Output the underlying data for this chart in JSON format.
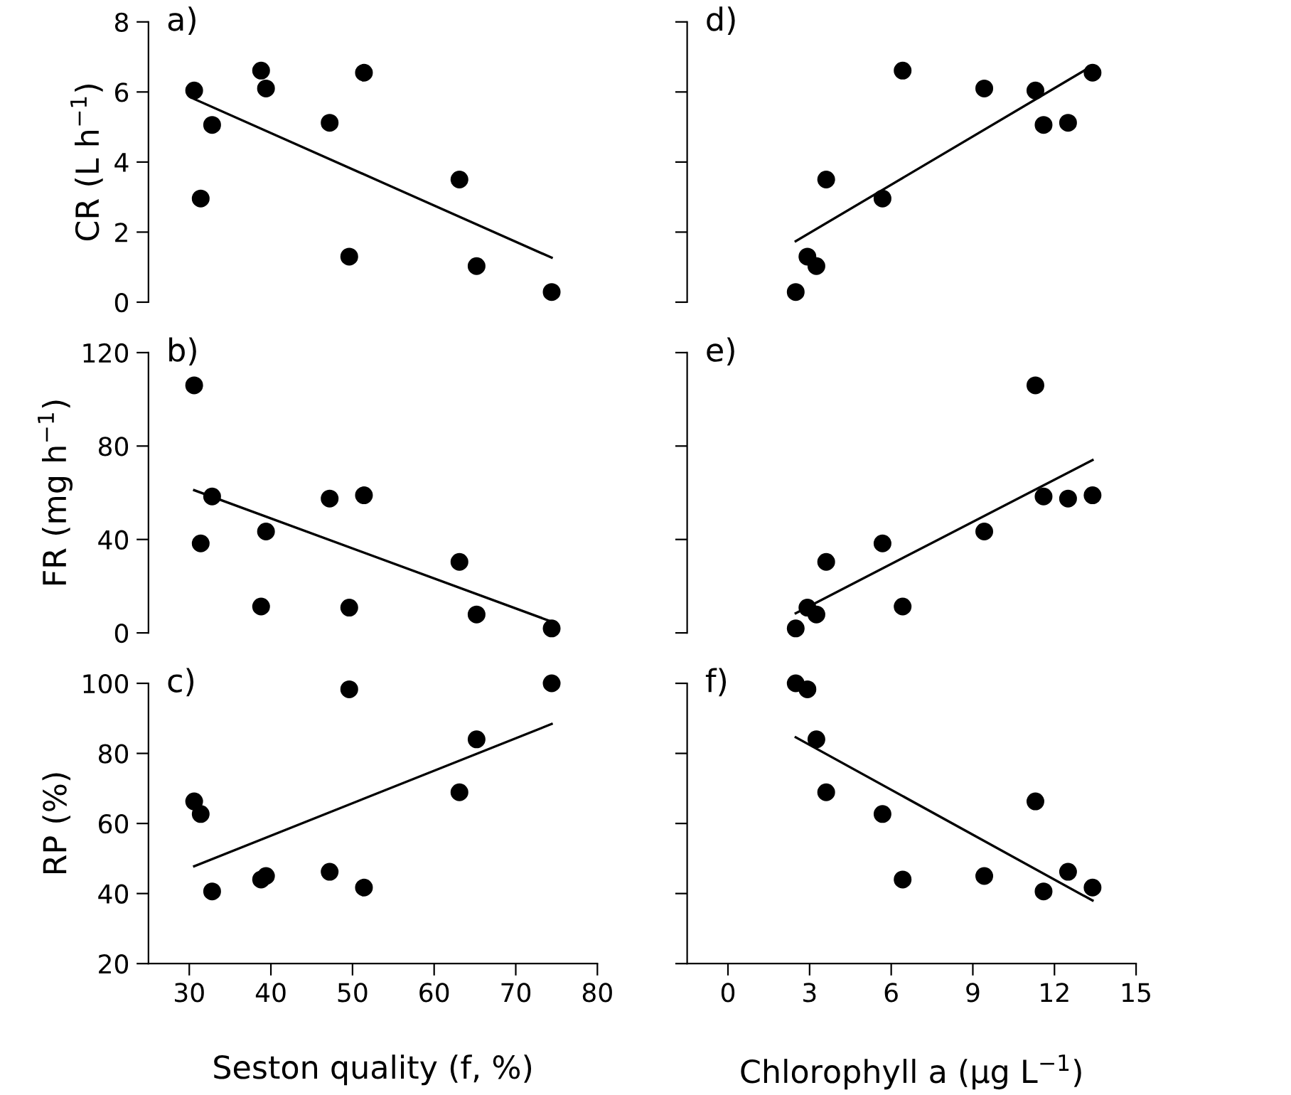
{
  "chart_data": [
    {
      "type": "scatter",
      "annotations": [
        "a)"
      ],
      "ylabel": "CR (L h$^{−1}$)",
      "xlim": [
        25,
        80
      ],
      "ylim": [
        0,
        8
      ],
      "yticks": [
        0,
        2,
        4,
        6,
        8
      ],
      "tick_labels": "y",
      "grid": false,
      "series": [
        {
          "marker": "circle",
          "color": "#000000",
          "x": [
            30.6,
            31.4,
            32.8,
            38.8,
            39.4,
            47.2,
            49.6,
            51.4,
            63.1,
            65.2,
            74.4
          ],
          "values": [
            6.04,
            2.96,
            5.06,
            6.61,
            6.1,
            5.12,
            1.3,
            6.55,
            3.5,
            1.03,
            0.29
          ]
        },
        {
          "type": "line",
          "color": "#000000",
          "x": [
            30.6,
            74.4
          ],
          "values": [
            5.8,
            1.27
          ]
        }
      ]
    },
    {
      "type": "scatter",
      "annotations": [
        "d)"
      ],
      "xlim": [
        -1.5,
        15
      ],
      "ylim": [
        0,
        8
      ],
      "yticks": [
        {
          "value": 0,
          "label": null
        },
        {
          "value": 2,
          "label": null
        },
        {
          "value": 4,
          "label": null
        },
        {
          "value": 6,
          "label": null
        },
        {
          "value": 8,
          "label": null
        }
      ],
      "tick_labels": false,
      "grid": false,
      "series": [
        {
          "marker": "circle",
          "color": "#000000",
          "x": [
            11.3,
            5.68,
            11.6,
            6.42,
            9.42,
            12.5,
            2.92,
            13.4,
            3.61,
            3.25,
            2.49
          ],
          "values": [
            6.04,
            2.96,
            5.06,
            6.61,
            6.1,
            5.12,
            1.3,
            6.55,
            3.5,
            1.03,
            0.29
          ]
        },
        {
          "type": "line",
          "color": "#000000",
          "x": [
            2.49,
            13.4
          ],
          "values": [
            1.74,
            6.75
          ]
        }
      ]
    },
    {
      "type": "scatter",
      "annotations": [
        "b)"
      ],
      "ylabel": "FR (mg h$^{−1}$)",
      "xlim": [
        25,
        80
      ],
      "ylim": [
        0,
        120
      ],
      "yticks": [
        0,
        40,
        80,
        120
      ],
      "tick_labels": "y",
      "grid": false,
      "series": [
        {
          "marker": "circle",
          "color": "#000000",
          "x": [
            30.6,
            31.4,
            32.8,
            38.8,
            39.4,
            47.2,
            49.6,
            51.4,
            63.1,
            65.2,
            74.4
          ],
          "values": [
            106,
            38.3,
            58.4,
            11.3,
            43.4,
            57.5,
            10.8,
            58.9,
            30.4,
            7.9,
            1.9
          ]
        },
        {
          "type": "line",
          "color": "#000000",
          "x": [
            30.6,
            74.4
          ],
          "values": [
            61.1,
            4.8
          ]
        }
      ]
    },
    {
      "type": "scatter",
      "annotations": [
        "e)"
      ],
      "xlim": [
        -1.5,
        15
      ],
      "ylim": [
        0,
        120
      ],
      "yticks": [
        {
          "value": 0,
          "label": null
        },
        {
          "value": 40,
          "label": null
        },
        {
          "value": 80,
          "label": null
        },
        {
          "value": 120,
          "label": null
        }
      ],
      "tick_labels": false,
      "grid": false,
      "series": [
        {
          "marker": "circle",
          "color": "#000000",
          "x": [
            11.3,
            5.68,
            11.6,
            6.42,
            9.42,
            12.5,
            2.92,
            13.4,
            3.61,
            3.25,
            2.49
          ],
          "values": [
            106,
            38.3,
            58.4,
            11.3,
            43.4,
            57.5,
            10.8,
            58.9,
            30.4,
            7.9,
            1.9
          ]
        },
        {
          "type": "line",
          "color": "#000000",
          "x": [
            2.49,
            13.4
          ],
          "values": [
            8.4,
            74
          ]
        }
      ]
    },
    {
      "type": "scatter",
      "annotations": [
        "c)"
      ],
      "ylabel": "RP (%)",
      "xlabel": "Seston quality (f, %)",
      "xlim": [
        25,
        80
      ],
      "ylim": [
        20,
        100
      ],
      "xticks": [
        30,
        40,
        50,
        60,
        70,
        80
      ],
      "yticks": [
        20,
        40,
        60,
        80,
        100
      ],
      "grid": false,
      "series": [
        {
          "marker": "circle",
          "color": "#000000",
          "x": [
            30.6,
            31.4,
            32.8,
            38.8,
            39.4,
            47.2,
            49.6,
            51.4,
            63.1,
            65.2,
            74.4
          ],
          "values": [
            66.3,
            62.7,
            40.6,
            44,
            45,
            46.2,
            98.3,
            41.7,
            68.9,
            84,
            100
          ]
        },
        {
          "type": "line",
          "color": "#000000",
          "x": [
            30.6,
            74.4
          ],
          "values": [
            47.8,
            88.4
          ]
        }
      ]
    },
    {
      "type": "scatter",
      "annotations": [
        "f)"
      ],
      "xlabel": "Chlorophyll a (µg L$^{−1}$)",
      "xlim": [
        -1.5,
        15
      ],
      "ylim": [
        20,
        100
      ],
      "xticks": [
        0,
        3,
        6,
        9,
        12,
        15
      ],
      "yticks": [
        {
          "value": 20,
          "label": null
        },
        {
          "value": 40,
          "label": null
        },
        {
          "value": 60,
          "label": null
        },
        {
          "value": 80,
          "label": null
        },
        {
          "value": 100,
          "label": null
        }
      ],
      "tick_labels": "x",
      "grid": false,
      "series": [
        {
          "marker": "circle",
          "color": "#000000",
          "x": [
            11.3,
            5.68,
            11.6,
            6.42,
            9.42,
            12.5,
            2.92,
            13.4,
            3.61,
            3.25,
            2.49
          ],
          "values": [
            66.3,
            62.7,
            40.6,
            44,
            45,
            46.2,
            98.3,
            41.7,
            68.9,
            84,
            100
          ]
        },
        {
          "type": "line",
          "color": "#000000",
          "x": [
            2.49,
            13.4
          ],
          "values": [
            84.6,
            38
          ]
        }
      ]
    }
  ]
}
